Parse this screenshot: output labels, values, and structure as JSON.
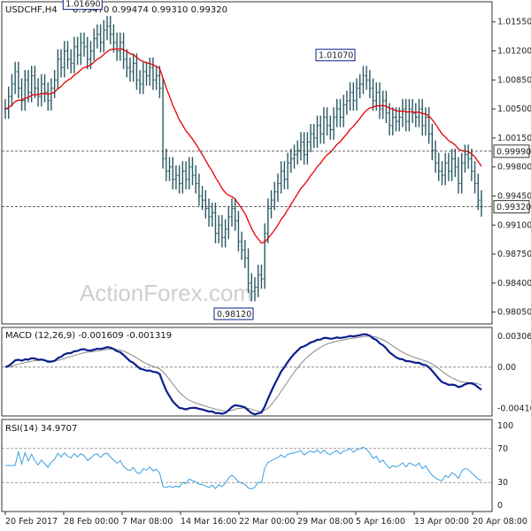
{
  "title": {
    "symbol": "USDCHF,H4",
    "ohlc": "0.99470 0.99474 0.99310 0.99320"
  },
  "watermark": "ActionForex.com",
  "colors": {
    "bars": "#2a5a63",
    "ma": "#e60000",
    "macd": "#0b1f8c",
    "signal": "#888888",
    "rsi": "#3aa0e0",
    "tag_border": "#0b1f8c"
  },
  "chart_data": [
    {
      "type": "ohlc",
      "name": "Price",
      "ylim": [
        0.9795,
        1.0175
      ],
      "yticks": [
        "1.01550",
        "1.01200",
        "1.00850",
        "1.00500",
        "1.00150",
        "0.99800",
        "0.99450",
        "0.99100",
        "0.98750",
        "0.98400",
        "0.98050"
      ],
      "ytick_values": [
        1.0155,
        1.012,
        1.0085,
        1.005,
        1.0015,
        0.998,
        0.9945,
        0.991,
        0.9875,
        0.984,
        0.9805
      ],
      "xlabels": [
        "20 Feb 2017",
        "28 Feb 00:00",
        "7 Mar 08:00",
        "14 Mar 16:00",
        "22 Mar 00:00",
        "29 Mar 08:00",
        "5 Apr 16:00",
        "13 Apr 00:00",
        "20 Apr 08:00"
      ],
      "close": [
        1.005,
        1.0065,
        1.008,
        1.0095,
        1.0075,
        1.006,
        1.0085,
        1.007,
        1.009,
        1.0075,
        1.0065,
        1.008,
        1.007,
        1.006,
        1.0075,
        1.0085,
        1.011,
        1.01,
        1.012,
        1.011,
        1.0105,
        1.0125,
        1.0115,
        1.013,
        1.0125,
        1.011,
        1.012,
        1.0135,
        1.014,
        1.013,
        1.0145,
        1.015,
        1.014,
        1.013,
        1.012,
        1.013,
        1.011,
        1.01,
        1.0095,
        1.0105,
        1.0085,
        1.008,
        1.0095,
        1.009,
        1.01,
        1.0085,
        1.009,
        1.0075,
        0.999,
        0.9975,
        0.998,
        0.9965,
        0.997,
        0.996,
        0.9975,
        0.9965,
        0.998,
        0.997,
        0.996,
        0.9945,
        0.994,
        0.993,
        0.992,
        0.9925,
        0.99,
        0.991,
        0.9895,
        0.9905,
        0.992,
        0.993,
        0.9915,
        0.989,
        0.988,
        0.987,
        0.984,
        0.983,
        0.9835,
        0.985,
        0.9845,
        0.99,
        0.993,
        0.994,
        0.995,
        0.996,
        0.9975,
        0.9965,
        0.9985,
        0.999,
        0.9995,
        1.0,
        1.001,
        0.9995,
        1.001,
        1.002,
        1.0015,
        1.003,
        1.002,
        1.004,
        1.003,
        1.0025,
        1.004,
        1.005,
        1.004,
        1.0055,
        1.006,
        1.007,
        1.006,
        1.0075,
        1.008,
        1.009,
        1.0085,
        1.0075,
        1.006,
        1.007,
        1.005,
        1.006,
        1.0045,
        1.003,
        1.004,
        1.0035,
        1.004,
        1.005,
        1.0035,
        1.005,
        1.0045,
        1.004,
        1.005,
        1.003,
        1.004,
        1.002,
        1.0,
        0.9985,
        0.9975,
        0.997,
        0.9985,
        0.9975,
        0.999,
        0.998,
        0.996,
        0.9985,
        0.9995,
        0.999,
        0.9975,
        0.996,
        0.994,
        0.9932
      ],
      "sma_label": "",
      "hlines": [
        {
          "label": "0.99990",
          "value": 0.9999
        },
        {
          "label": "0.99320",
          "value": 0.9932
        }
      ],
      "annotations": [
        {
          "label": "1.01690",
          "value": 1.0169,
          "bar": 30
        },
        {
          "label": "1.01070",
          "value": 1.0107,
          "bar": 107
        },
        {
          "label": "0.98120",
          "value": 0.9812,
          "bar": 76
        }
      ]
    },
    {
      "type": "line",
      "name": "MACD (12,26,9) -0.001609 -0.001319",
      "title": "MACD (12,26,9) -0.001609 -0.001319",
      "ylim": [
        -0.0045,
        0.0036
      ],
      "yticks": [
        "0.003063",
        "0.00",
        "-0.004104"
      ],
      "ytick_values": [
        0.003063,
        0.0,
        -0.004104
      ]
    },
    {
      "type": "line",
      "name": "RSI(14) 34.9707",
      "title": "RSI(14) 34.9707",
      "ylim": [
        0,
        100
      ],
      "yticks": [
        "100",
        "70",
        "30",
        "0"
      ],
      "ytick_values": [
        100,
        70,
        30,
        0
      ]
    }
  ]
}
